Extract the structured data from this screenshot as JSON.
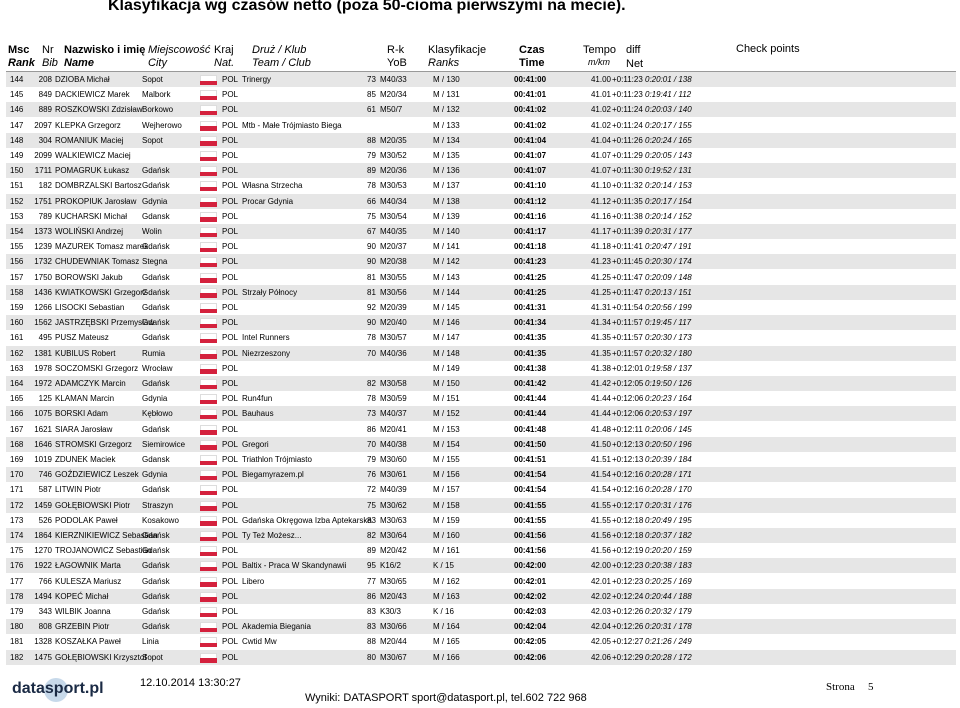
{
  "title": "Klasyfikacja wg czasów netto (poza 50-cioma pierwszymi na mecie).",
  "header": {
    "rank": [
      "Msc",
      "Rank"
    ],
    "bib": [
      "Nr",
      "Bib"
    ],
    "name": [
      "Nazwisko i imię",
      "Name"
    ],
    "city": [
      "Miejscowość",
      "City"
    ],
    "nat": [
      "Kraj",
      "Nat."
    ],
    "team": [
      "Druż / Klub",
      "Team / Club"
    ],
    "yob": [
      "R-k",
      "YoB"
    ],
    "ranks": [
      "Klasyfikacje",
      "Ranks"
    ],
    "time": [
      "Czas",
      "Time"
    ],
    "tempo": [
      "Tempo",
      "m/km"
    ],
    "diff": "diff",
    "net": "Net",
    "checkpoints": "Check points"
  },
  "table": {
    "rows": [
      {
        "r": "144",
        "b": "208",
        "n": "DZIOBA Michał",
        "c": "Sopot",
        "k": "POL",
        "t": "Trinergy",
        "y": "73",
        "g": "M40/33",
        "m": "M / 130",
        "tm": "00:41:00",
        "p": "41.00",
        "d": "+0:11:23",
        "net": "0:20:01 / 138"
      },
      {
        "r": "145",
        "b": "849",
        "n": "DACKIEWICZ Marek",
        "c": "Malbork",
        "k": "POL",
        "y": "85",
        "g": "M20/34",
        "m": "M / 131",
        "tm": "00:41:01",
        "p": "41.01",
        "d": "+0:11:23",
        "net": "0:19:41 / 112"
      },
      {
        "r": "146",
        "b": "889",
        "n": "ROSZKOWSKI Zdzisław",
        "c": "Borkowo",
        "k": "POL",
        "y": "61",
        "g": "M50/7",
        "m": "M / 132",
        "tm": "00:41:02",
        "p": "41.02",
        "d": "+0:11:24",
        "net": "0:20:03 / 140"
      },
      {
        "r": "147",
        "b": "2097",
        "n": "KLEPKA Grzegorz",
        "c": "Wejherowo",
        "k": "POL",
        "t": "Mtb - Małe Trójmiasto Biega",
        "m": "M / 133",
        "tm": "00:41:02",
        "p": "41.02",
        "d": "+0:11:24",
        "net": "0:20:17 / 155"
      },
      {
        "r": "148",
        "b": "304",
        "n": "ROMANIUK Maciej",
        "c": "Sopot",
        "k": "POL",
        "y": "88",
        "g": "M20/35",
        "m": "M / 134",
        "tm": "00:41:04",
        "p": "41.04",
        "d": "+0:11:26",
        "net": "0:20:24 / 165"
      },
      {
        "r": "149",
        "b": "2099",
        "n": "WALKIEWICZ Maciej",
        "k": "POL",
        "y": "79",
        "g": "M30/52",
        "m": "M / 135",
        "tm": "00:41:07",
        "p": "41.07",
        "d": "+0:11:29",
        "net": "0:20:05 / 143"
      },
      {
        "r": "150",
        "b": "1711",
        "n": "POMAGRUK Łukasz",
        "c": "Gdańsk",
        "k": "POL",
        "y": "89",
        "g": "M20/36",
        "m": "M / 136",
        "tm": "00:41:07",
        "p": "41.07",
        "d": "+0:11:30",
        "net": "0:19:52 / 131"
      },
      {
        "r": "151",
        "b": "182",
        "n": "DOMBRZALSKI Bartosz",
        "c": "Gdańsk",
        "k": "POL",
        "t": "Własna Strzecha",
        "y": "78",
        "g": "M30/53",
        "m": "M / 137",
        "tm": "00:41:10",
        "p": "41.10",
        "d": "+0:11:32",
        "net": "0:20:14 / 153"
      },
      {
        "r": "152",
        "b": "1751",
        "n": "PROKOPIUK Jarosław",
        "c": "Gdynia",
        "k": "POL",
        "t": "Procar Gdynia",
        "y": "66",
        "g": "M40/34",
        "m": "M / 138",
        "tm": "00:41:12",
        "p": "41.12",
        "d": "+0:11:35",
        "net": "0:20:17 / 154"
      },
      {
        "r": "153",
        "b": "789",
        "n": "KUCHARSKI Michał",
        "c": "Gdansk",
        "k": "POL",
        "y": "75",
        "g": "M30/54",
        "m": "M / 139",
        "tm": "00:41:16",
        "p": "41.16",
        "d": "+0:11:38",
        "net": "0:20:14 / 152"
      },
      {
        "r": "154",
        "b": "1373",
        "n": "WOLIŃSKI Andrzej",
        "c": "Wolin",
        "k": "POL",
        "y": "67",
        "g": "M40/35",
        "m": "M / 140",
        "tm": "00:41:17",
        "p": "41.17",
        "d": "+0:11:39",
        "net": "0:20:31 / 177"
      },
      {
        "r": "155",
        "b": "1239",
        "n": "MAZUREK Tomasz marek",
        "c": "Gdańsk",
        "k": "POL",
        "y": "90",
        "g": "M20/37",
        "m": "M / 141",
        "tm": "00:41:18",
        "p": "41.18",
        "d": "+0:11:41",
        "net": "0:20:47 / 191"
      },
      {
        "r": "156",
        "b": "1732",
        "n": "CHUDEWNIAK Tomasz",
        "c": "Stegna",
        "k": "POL",
        "y": "90",
        "g": "M20/38",
        "m": "M / 142",
        "tm": "00:41:23",
        "p": "41.23",
        "d": "+0:11:45",
        "net": "0:20:30 / 174"
      },
      {
        "r": "157",
        "b": "1750",
        "n": "BOROWSKI Jakub",
        "c": "Gdańsk",
        "k": "POL",
        "y": "81",
        "g": "M30/55",
        "m": "M / 143",
        "tm": "00:41:25",
        "p": "41.25",
        "d": "+0:11:47",
        "net": "0:20:09 / 148"
      },
      {
        "r": "158",
        "b": "1436",
        "n": "KWIATKOWSKI Grzegorz",
        "c": "Gdańsk",
        "k": "POL",
        "t": "Strzały Północy",
        "y": "81",
        "g": "M30/56",
        "m": "M / 144",
        "tm": "00:41:25",
        "p": "41.25",
        "d": "+0:11:47",
        "net": "0:20:13 / 151"
      },
      {
        "r": "159",
        "b": "1266",
        "n": "LISOCKI Sebastian",
        "c": "Gdańsk",
        "k": "POL",
        "y": "92",
        "g": "M20/39",
        "m": "M / 145",
        "tm": "00:41:31",
        "p": "41.31",
        "d": "+0:11:54",
        "net": "0:20:56 / 199"
      },
      {
        "r": "160",
        "b": "1562",
        "n": "JASTRZĘBSKI Przemysław",
        "c": "Gdańsk",
        "k": "POL",
        "y": "90",
        "g": "M20/40",
        "m": "M / 146",
        "tm": "00:41:34",
        "p": "41.34",
        "d": "+0:11:57",
        "net": "0:19:45 / 117"
      },
      {
        "r": "161",
        "b": "495",
        "n": "PUSZ Mateusz",
        "c": "Gdańsk",
        "k": "POL",
        "t": "Intel Runners",
        "y": "78",
        "g": "M30/57",
        "m": "M / 147",
        "tm": "00:41:35",
        "p": "41.35",
        "d": "+0:11:57",
        "net": "0:20:30 / 173"
      },
      {
        "r": "162",
        "b": "1381",
        "n": "KUBILUS Robert",
        "c": "Rumia",
        "k": "POL",
        "t": "Niezrzeszony",
        "y": "70",
        "g": "M40/36",
        "m": "M / 148",
        "tm": "00:41:35",
        "p": "41.35",
        "d": "+0:11:57",
        "net": "0:20:32 / 180"
      },
      {
        "r": "163",
        "b": "1978",
        "n": "SOCZOMSKI Grzegorz",
        "c": "Wrocław",
        "k": "POL",
        "m": "M / 149",
        "tm": "00:41:38",
        "p": "41.38",
        "d": "+0:12:01",
        "net": "0:19:58 / 137"
      },
      {
        "r": "164",
        "b": "1972",
        "n": "ADAMCZYK Marcin",
        "c": "Gdańsk",
        "k": "POL",
        "y": "82",
        "g": "M30/58",
        "m": "M / 150",
        "tm": "00:41:42",
        "p": "41.42",
        "d": "+0:12:05",
        "net": "0:19:50 / 126"
      },
      {
        "r": "165",
        "b": "125",
        "n": "KLAMAN Marcin",
        "c": "Gdynia",
        "k": "POL",
        "t": "Run4fun",
        "y": "78",
        "g": "M30/59",
        "m": "M / 151",
        "tm": "00:41:44",
        "p": "41.44",
        "d": "+0:12:06",
        "net": "0:20:23 / 164"
      },
      {
        "r": "166",
        "b": "1075",
        "n": "BORSKI Adam",
        "c": "Kębłowo",
        "k": "POL",
        "t": "Bauhaus",
        "y": "73",
        "g": "M40/37",
        "m": "M / 152",
        "tm": "00:41:44",
        "p": "41.44",
        "d": "+0:12:06",
        "net": "0:20:53 / 197"
      },
      {
        "r": "167",
        "b": "1621",
        "n": "SIARA Jarosław",
        "c": "Gdańsk",
        "k": "POL",
        "y": "86",
        "g": "M20/41",
        "m": "M / 153",
        "tm": "00:41:48",
        "p": "41.48",
        "d": "+0:12:11",
        "net": "0:20:06 / 145"
      },
      {
        "r": "168",
        "b": "1646",
        "n": "STROMSKI Grzegorz",
        "c": "Siemirowice",
        "k": "POL",
        "t": "Gregori",
        "y": "70",
        "g": "M40/38",
        "m": "M / 154",
        "tm": "00:41:50",
        "p": "41.50",
        "d": "+0:12:13",
        "net": "0:20:50 / 196"
      },
      {
        "r": "169",
        "b": "1019",
        "n": "ZDUNEK Maciek",
        "c": "Gdansk",
        "k": "POL",
        "t": "Triathlon Trójmiasto",
        "y": "79",
        "g": "M30/60",
        "m": "M / 155",
        "tm": "00:41:51",
        "p": "41.51",
        "d": "+0:12:13",
        "net": "0:20:39 / 184"
      },
      {
        "r": "170",
        "b": "746",
        "n": "GOŹDZIEWICZ Leszek",
        "c": "Gdynia",
        "k": "POL",
        "t": "Biegamyrazem.pl",
        "y": "76",
        "g": "M30/61",
        "m": "M / 156",
        "tm": "00:41:54",
        "p": "41.54",
        "d": "+0:12:16",
        "net": "0:20:28 / 171"
      },
      {
        "r": "171",
        "b": "587",
        "n": "LITWIN Piotr",
        "c": "Gdańsk",
        "k": "POL",
        "y": "72",
        "g": "M40/39",
        "m": "M / 157",
        "tm": "00:41:54",
        "p": "41.54",
        "d": "+0:12:16",
        "net": "0:20:28 / 170"
      },
      {
        "r": "172",
        "b": "1459",
        "n": "GOŁĘBIOWSKI Piotr",
        "c": "Straszyn",
        "k": "POL",
        "y": "75",
        "g": "M30/62",
        "m": "M / 158",
        "tm": "00:41:55",
        "p": "41.55",
        "d": "+0:12:17",
        "net": "0:20:31 / 176"
      },
      {
        "r": "173",
        "b": "526",
        "n": "PODOLAK Paweł",
        "c": "Kosakowo",
        "k": "POL",
        "t": "Gdańska Okręgowa Izba Aptekarska",
        "y": "83",
        "g": "M30/63",
        "m": "M / 159",
        "tm": "00:41:55",
        "p": "41.55",
        "d": "+0:12:18",
        "net": "0:20:49 / 195"
      },
      {
        "r": "174",
        "b": "1864",
        "n": "KIERZNIKIEWICZ Sebastian",
        "c": "Gdańsk",
        "k": "POL",
        "t": "Ty Też Możesz...",
        "y": "82",
        "g": "M30/64",
        "m": "M / 160",
        "tm": "00:41:56",
        "p": "41.56",
        "d": "+0:12:18",
        "net": "0:20:37 / 182"
      },
      {
        "r": "175",
        "b": "1270",
        "n": "TROJANOWICZ Sebastian",
        "c": "Gdańsk",
        "k": "POL",
        "y": "89",
        "g": "M20/42",
        "m": "M / 161",
        "tm": "00:41:56",
        "p": "41.56",
        "d": "+0:12:19",
        "net": "0:20:20 / 159"
      },
      {
        "r": "176",
        "b": "1922",
        "n": "ŁAGOWNIK Marta",
        "c": "Gdańsk",
        "k": "POL",
        "t": "Baltix - Praca W Skandynawii",
        "y": "95",
        "g": "K16/2",
        "m": "K / 15",
        "tm": "00:42:00",
        "p": "42.00",
        "d": "+0:12:23",
        "net": "0:20:38 / 183"
      },
      {
        "r": "177",
        "b": "766",
        "n": "KULESZA Mariusz",
        "c": "Gdańsk",
        "k": "POL",
        "t": "Libero",
        "y": "77",
        "g": "M30/65",
        "m": "M / 162",
        "tm": "00:42:01",
        "p": "42.01",
        "d": "+0:12:23",
        "net": "0:20:25 / 169"
      },
      {
        "r": "178",
        "b": "1494",
        "n": "KOPEĆ Michał",
        "c": "Gdańsk",
        "k": "POL",
        "y": "86",
        "g": "M20/43",
        "m": "M / 163",
        "tm": "00:42:02",
        "p": "42.02",
        "d": "+0:12:24",
        "net": "0:20:44 / 188"
      },
      {
        "r": "179",
        "b": "343",
        "n": "WILBIK Joanna",
        "c": "Gdańsk",
        "k": "POL",
        "y": "83",
        "g": "K30/3",
        "m": "K / 16",
        "tm": "00:42:03",
        "p": "42.03",
        "d": "+0:12:26",
        "net": "0:20:32 / 179"
      },
      {
        "r": "180",
        "b": "808",
        "n": "GRZEBIN Piotr",
        "c": "Gdańsk",
        "k": "POL",
        "t": "Akademia Biegania",
        "y": "83",
        "g": "M30/66",
        "m": "M / 164",
        "tm": "00:42:04",
        "p": "42.04",
        "d": "+0:12:26",
        "net": "0:20:31 / 178"
      },
      {
        "r": "181",
        "b": "1328",
        "n": "KOSZAŁKA Paweł",
        "c": "Linia",
        "k": "POL",
        "t": "Cwtid Mw",
        "y": "88",
        "g": "M20/44",
        "m": "M / 165",
        "tm": "00:42:05",
        "p": "42.05",
        "d": "+0:12:27",
        "net": "0:21:26 / 249"
      },
      {
        "r": "182",
        "b": "1475",
        "n": "GOŁĘBIOWSKI Krzysztof",
        "c": "Sopot",
        "k": "POL",
        "y": "80",
        "g": "M30/67",
        "m": "M / 166",
        "tm": "00:42:06",
        "p": "42.06",
        "d": "+0:12:29",
        "net": "0:20:28 / 172"
      }
    ]
  },
  "footer": {
    "logo": "datasport.pl",
    "timestamp": "12.10.2014 13:30:27",
    "contact": "Wyniki: DATASPORT sport@datasport.pl, tel.602 722 968",
    "page_label": "Strona",
    "page_number": "5"
  }
}
